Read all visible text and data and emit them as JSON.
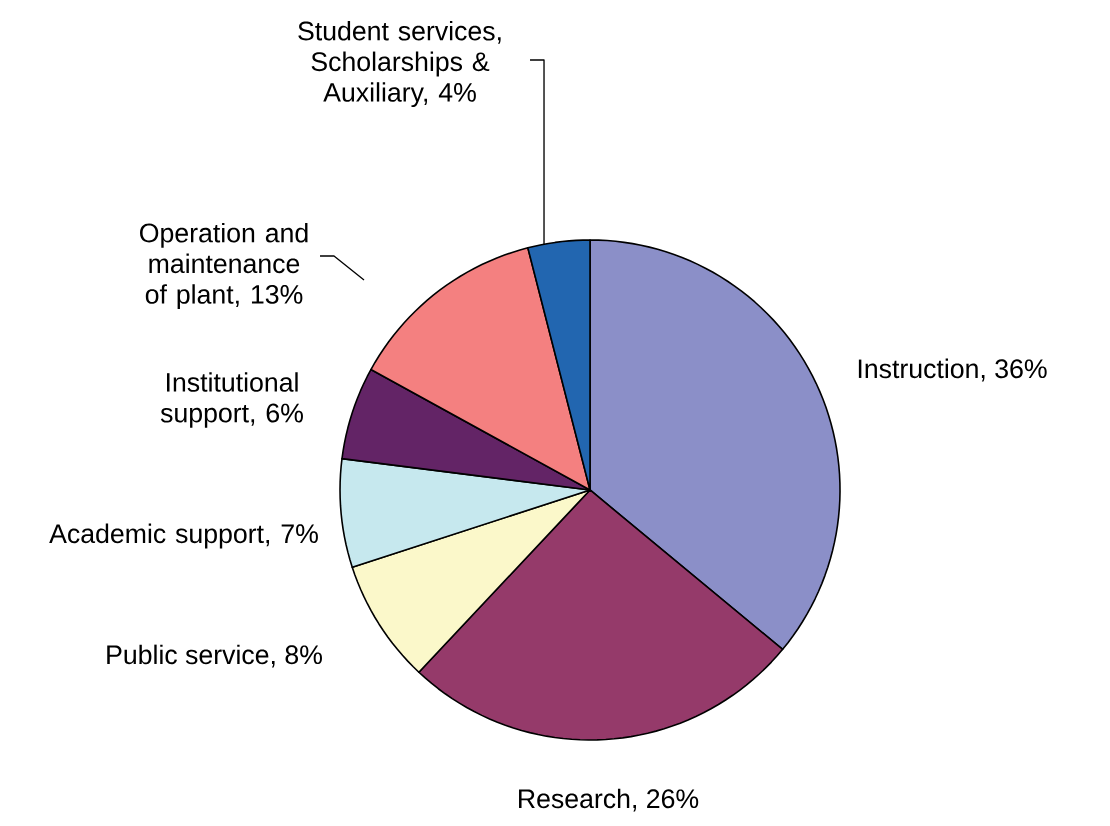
{
  "chart_data": {
    "type": "pie",
    "categories": [
      "Instruction, 36%",
      "Research, 26%",
      "Public service, 8%",
      "Academic support, 7%",
      "Institutional support, 6%",
      "Operation and maintenance of plant, 13%",
      "Student services, Scholarships & Auxiliary, 4%"
    ],
    "values": [
      36,
      26,
      8,
      7,
      6,
      13,
      4
    ],
    "colors": [
      "#8b8fc8",
      "#953a6a",
      "#fbf8ca",
      "#c6e8ee",
      "#632466",
      "#f48080",
      "#2266b0"
    ]
  }
}
